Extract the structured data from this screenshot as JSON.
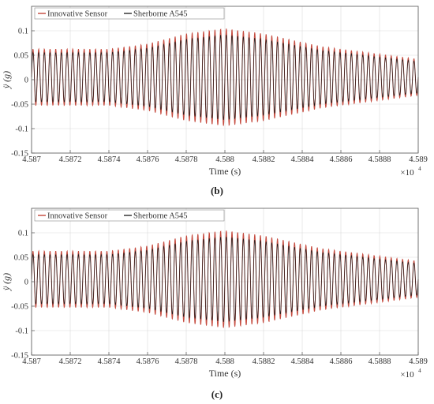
{
  "figure": {
    "colors": {
      "innovative": "#c0392b",
      "sherborne": "#1a1a1a",
      "grid": "#d9d9d9",
      "axis": "#555555"
    }
  },
  "chart_data": [
    {
      "type": "line",
      "panel_label": "(b)",
      "title": "",
      "xlabel": "Time (s)",
      "ylabel": "ÿ (g)",
      "x_multiplier": "×10",
      "x_multiplier_exp": "4",
      "xlim": [
        4.587,
        4.589
      ],
      "ylim": [
        -0.15,
        0.15
      ],
      "x_ticks": [
        4.587,
        4.5872,
        4.5874,
        4.5876,
        4.5878,
        4.588,
        4.5882,
        4.5884,
        4.5886,
        4.5888,
        4.589
      ],
      "x_tick_labels": [
        "4.587",
        "4.5872",
        "4.5874",
        "4.5876",
        "4.5878",
        "4.588",
        "4.5882",
        "4.5884",
        "4.5886",
        "4.5888",
        "4.589"
      ],
      "y_ticks": [
        -0.15,
        -0.1,
        -0.05,
        0,
        0.05,
        0.1
      ],
      "y_tick_labels": [
        "-0.15",
        "-0.1",
        "-0.05",
        "0",
        "0.05",
        "0.1"
      ],
      "grid": true,
      "legend": "top-left",
      "signal": {
        "cycles": 68,
        "offset": 0.005,
        "envelope_x": [
          4.587,
          4.5874,
          4.5876,
          4.5878,
          4.588,
          4.5882,
          4.5885,
          4.5889,
          4.589
        ],
        "envelope_amp": [
          0.055,
          0.055,
          0.065,
          0.085,
          0.095,
          0.085,
          0.06,
          0.04,
          0.035
        ]
      },
      "series": [
        {
          "name": "Innovative Sensor",
          "color": "#c0392b",
          "amp_scale": 1.05
        },
        {
          "name": "Sherborne A545",
          "color": "#1a1a1a",
          "amp_scale": 0.95
        }
      ]
    },
    {
      "type": "line",
      "panel_label": "(c)",
      "title": "",
      "xlabel": "Time (s)",
      "ylabel": "ÿ (g)",
      "x_multiplier": "×10",
      "x_multiplier_exp": "4",
      "xlim": [
        4.587,
        4.589
      ],
      "ylim": [
        -0.15,
        0.15
      ],
      "x_ticks": [
        4.587,
        4.5872,
        4.5874,
        4.5876,
        4.5878,
        4.588,
        4.5882,
        4.5884,
        4.5886,
        4.5888,
        4.589
      ],
      "x_tick_labels": [
        "4.587",
        "4.5872",
        "4.5874",
        "4.5876",
        "4.5878",
        "4.588",
        "4.5882",
        "4.5884",
        "4.5886",
        "4.5888",
        "4.589"
      ],
      "y_ticks": [
        -0.15,
        -0.1,
        -0.05,
        0,
        0.05,
        0.1
      ],
      "y_tick_labels": [
        "-0.15",
        "-0.1",
        "-0.05",
        "0",
        "0.05",
        "0.1"
      ],
      "grid": true,
      "legend": "top-left",
      "signal": {
        "cycles": 68,
        "offset": 0.005,
        "envelope_x": [
          4.587,
          4.5874,
          4.5876,
          4.5878,
          4.588,
          4.5882,
          4.5885,
          4.5889,
          4.589
        ],
        "envelope_amp": [
          0.055,
          0.055,
          0.065,
          0.085,
          0.095,
          0.085,
          0.06,
          0.04,
          0.035
        ]
      },
      "series": [
        {
          "name": "Innovative Sensor",
          "color": "#c0392b",
          "amp_scale": 1.05
        },
        {
          "name": "Sherborne A545",
          "color": "#1a1a1a",
          "amp_scale": 0.95
        }
      ]
    }
  ]
}
